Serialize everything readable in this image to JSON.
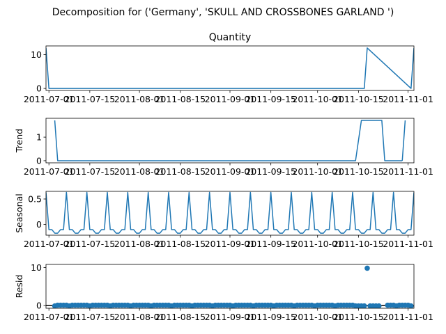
{
  "chart_data": {
    "suptitle": "Decomposition for ('Germany', 'SKULL AND CROSSBONES  GARLAND ')",
    "x_tick_labels": [
      "2011-07-01",
      "2011-07-15",
      "2011-08-01",
      "2011-08-15",
      "2011-09-01",
      "2011-09-15",
      "2011-10-01",
      "2011-10-15",
      "2011-11-01"
    ],
    "x_range": [
      "2011-06-30",
      "2011-11-03"
    ],
    "colors": {
      "series": "#1f77b4",
      "axes": "#000000",
      "background": "#ffffff"
    },
    "panels": [
      {
        "key": "observed",
        "type": "line",
        "title": "Quantity",
        "ylabel": "",
        "ylim": [
          -0.6,
          12.6
        ],
        "yticks": [
          0,
          10
        ],
        "x": [
          "2011-06-30",
          "2011-07-01",
          "2011-10-17",
          "2011-10-18",
          "2011-11-02",
          "2011-11-03"
        ],
        "y": [
          12,
          0,
          0,
          12,
          0,
          12
        ]
      },
      {
        "key": "trend",
        "type": "line",
        "title": "",
        "ylabel": "Trend",
        "ylim": [
          -0.09,
          1.8
        ],
        "yticks": [
          0,
          1
        ],
        "segments": [
          {
            "x": [
              "2011-07-03",
              "2011-07-04",
              "2011-10-14",
              "2011-10-16",
              "2011-10-23",
              "2011-10-24",
              "2011-10-30"
            ],
            "y": [
              1.71,
              0,
              0,
              1.71,
              1.71,
              0,
              0
            ]
          },
          {
            "x": [
              "2011-10-30",
              "2011-10-31"
            ],
            "y": [
              0,
              1.71
            ]
          }
        ]
      },
      {
        "key": "seasonal",
        "type": "line",
        "title": "",
        "ylabel": "Seasonal",
        "ylim": [
          -0.21,
          0.65
        ],
        "yticks": [
          0.0,
          0.5
        ],
        "period_days": 7,
        "pattern": [
          0.63,
          -0.1,
          -0.1,
          -0.17,
          -0.17,
          -0.1,
          -0.1
        ],
        "x_start": "2011-06-30",
        "x_end": "2011-11-03"
      },
      {
        "key": "resid",
        "type": "scatter",
        "title": "",
        "ylabel": "Resid",
        "ylim": [
          -0.7,
          10.8
        ],
        "yticks": [
          0,
          10
        ],
        "zero_line": true,
        "low_x": [
          "2011-07-03",
          "2011-07-08",
          "2011-07-15",
          "2011-07-22",
          "2011-07-29",
          "2011-08-05",
          "2011-08-12",
          "2011-08-19",
          "2011-08-26",
          "2011-09-02",
          "2011-09-09",
          "2011-09-16",
          "2011-09-23",
          "2011-09-30",
          "2011-10-07",
          "2011-10-14",
          "2011-10-15",
          "2011-10-16",
          "2011-10-17",
          "2011-10-19",
          "2011-10-20",
          "2011-10-21",
          "2011-10-22",
          "2011-10-28",
          "2011-11-02"
        ],
        "low_y": -0.1,
        "spike": {
          "x": "2011-10-18",
          "y": 9.8
        },
        "x_start": "2011-07-03",
        "x_end": "2011-11-02",
        "gap": [
          "2011-10-23",
          "2011-10-24"
        ],
        "normal_y": 0.1
      }
    ]
  }
}
